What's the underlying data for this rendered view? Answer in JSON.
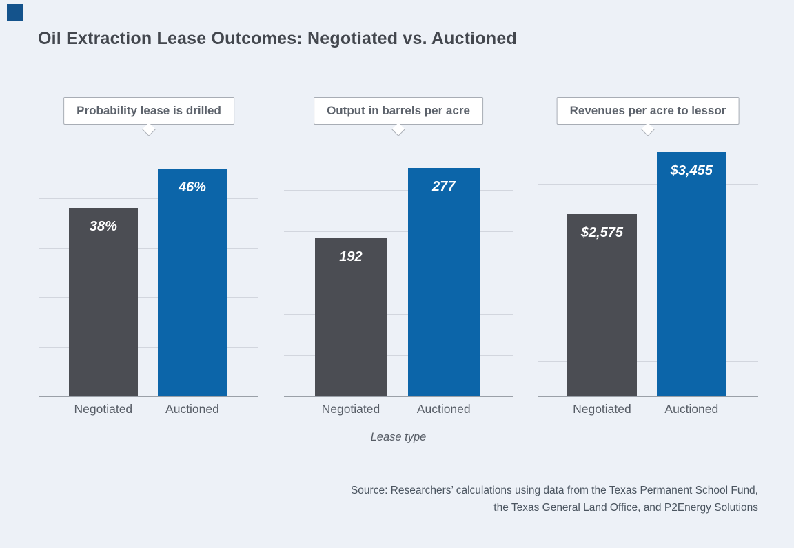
{
  "title": "Oil Extraction Lease Outcomes: Negotiated vs. Auctioned",
  "colors": {
    "background": "#edf1f7",
    "accent_square": "#14538c",
    "negotiated_bar": "#4b4d53",
    "auctioned_bar": "#0c65a9",
    "gridline": "#d2d6de",
    "baseline": "#9aa0a8",
    "title_text": "#43474e",
    "callout_text": "#5c626b"
  },
  "chart_data": {
    "type": "bar",
    "categories": [
      "Negotiated",
      "Auctioned"
    ],
    "xlabel": "Lease type",
    "grid": true,
    "panels": [
      {
        "title": "Probability lease is drilled",
        "values": [
          38,
          46
        ],
        "value_labels": [
          "38%",
          "46%"
        ],
        "axis_max": 50,
        "gridline_step": 10
      },
      {
        "title": "Output in barrels per acre",
        "values": [
          192,
          277
        ],
        "value_labels": [
          "192",
          "277"
        ],
        "axis_max": 300,
        "gridline_step": 50
      },
      {
        "title": "Revenues per acre to lessor",
        "values": [
          2575,
          3455
        ],
        "value_labels": [
          "$2,575",
          "$3,455"
        ],
        "axis_max": 3500,
        "gridline_step": 500
      }
    ]
  },
  "source": {
    "line1": "Source: Researchers’ calculations using data from the Texas Permanent School Fund,",
    "line2": "the Texas General Land Office, and P2Energy Solutions"
  }
}
